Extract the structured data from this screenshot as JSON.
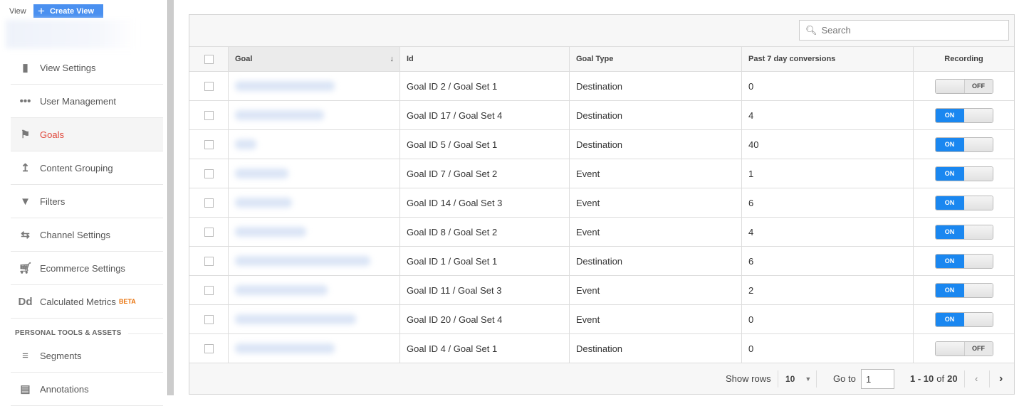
{
  "sidebar": {
    "view_label": "View",
    "create_view": "Create View",
    "items": [
      {
        "label": "View Settings",
        "icon": "document-icon"
      },
      {
        "label": "User Management",
        "icon": "users-icon"
      },
      {
        "label": "Goals",
        "icon": "flag-icon",
        "active": true
      },
      {
        "label": "Content Grouping",
        "icon": "content-grouping-icon"
      },
      {
        "label": "Filters",
        "icon": "filter-icon"
      },
      {
        "label": "Channel Settings",
        "icon": "channel-settings-icon"
      },
      {
        "label": "Ecommerce Settings",
        "icon": "cart-icon"
      },
      {
        "label": "Calculated Metrics",
        "icon": "dd-icon",
        "badge": "BETA"
      }
    ],
    "section": "PERSONAL TOOLS & ASSETS",
    "tools": [
      {
        "label": "Segments",
        "icon": "segments-icon"
      },
      {
        "label": "Annotations",
        "icon": "annotations-icon"
      }
    ]
  },
  "table": {
    "search_placeholder": "Search",
    "headers": [
      "Goal",
      "Id",
      "Goal Type",
      "Past 7 day conversions",
      "Recording"
    ],
    "rows": [
      {
        "id": "Goal ID 2 / Goal Set 1",
        "type": "Destination",
        "conv": "0",
        "recording": false
      },
      {
        "id": "Goal ID 17 / Goal Set 4",
        "type": "Destination",
        "conv": "4",
        "recording": true
      },
      {
        "id": "Goal ID 5 / Goal Set 1",
        "type": "Destination",
        "conv": "40",
        "recording": true
      },
      {
        "id": "Goal ID 7 / Goal Set 2",
        "type": "Event",
        "conv": "1",
        "recording": true
      },
      {
        "id": "Goal ID 14 / Goal Set 3",
        "type": "Event",
        "conv": "6",
        "recording": true
      },
      {
        "id": "Goal ID 8 / Goal Set 2",
        "type": "Event",
        "conv": "4",
        "recording": true
      },
      {
        "id": "Goal ID 1 / Goal Set 1",
        "type": "Destination",
        "conv": "6",
        "recording": true
      },
      {
        "id": "Goal ID 11 / Goal Set 3",
        "type": "Event",
        "conv": "2",
        "recording": true
      },
      {
        "id": "Goal ID 20 / Goal Set 4",
        "type": "Event",
        "conv": "0",
        "recording": true
      },
      {
        "id": "Goal ID 4 / Goal Set 1",
        "type": "Destination",
        "conv": "0",
        "recording": false
      }
    ],
    "toggle_on": "ON",
    "toggle_off": "OFF"
  },
  "footer": {
    "show_rows": "Show rows",
    "rows_value": "10",
    "go_to": "Go to",
    "page_value": "1",
    "range": "1 - 10",
    "of": "of",
    "total": "20"
  }
}
